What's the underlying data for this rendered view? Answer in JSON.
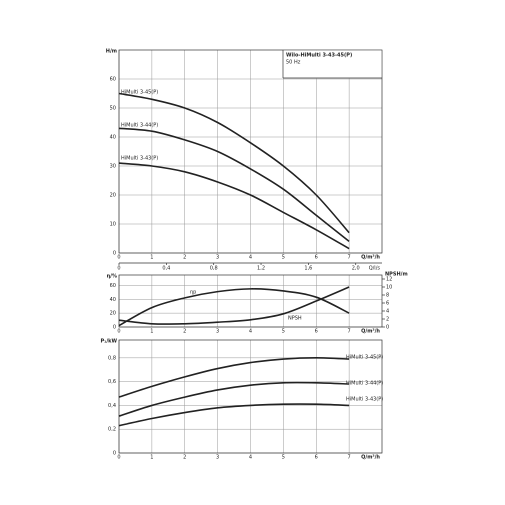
{
  "chart_data": [
    {
      "type": "line",
      "title": "Wilo-HiMulti 3-43-45(P)",
      "subtitle": "50 Hz",
      "y_label": "H/m",
      "x_label": "Q/m³/h",
      "x2_label": "Q/l/s",
      "x": [
        0,
        1,
        2,
        3,
        4,
        5,
        6,
        7
      ],
      "xlim": [
        0,
        8
      ],
      "xticks": [
        0,
        1,
        2,
        3,
        4,
        5,
        6,
        7
      ],
      "x2lim": [
        0,
        2.222
      ],
      "x2ticks": [
        0,
        {
          "value": 0.4,
          "label": "0,4"
        },
        {
          "value": 0.8,
          "label": "0,8"
        },
        {
          "value": 1.2,
          "label": "1,2"
        },
        {
          "value": 1.6,
          "label": "1,6"
        },
        {
          "value": 2.0,
          "label": "2,0"
        }
      ],
      "ylim": [
        0,
        70
      ],
      "yticks": [
        0,
        10,
        20,
        30,
        40,
        50,
        60
      ],
      "grid": true,
      "series": [
        {
          "name": "HiMulti 3-45(P)",
          "color": "#222222",
          "values": [
            55,
            53,
            50,
            45,
            38,
            30,
            20,
            7
          ]
        },
        {
          "name": "HiMulti 3-44(P)",
          "color": "#222222",
          "values": [
            43,
            42,
            39,
            35,
            29,
            22,
            13,
            4
          ]
        },
        {
          "name": "HiMulti 3-43(P)",
          "color": "#222222",
          "values": [
            31,
            30,
            28,
            24.5,
            20,
            14,
            8,
            1.5
          ]
        }
      ]
    },
    {
      "type": "line",
      "y_label": "η/%",
      "y2_label": "NPSH/m",
      "x_label": "Q/m³/h",
      "x": [
        0,
        1,
        2,
        3,
        4,
        5,
        6,
        7
      ],
      "xlim": [
        0,
        8
      ],
      "xticks": [
        0,
        1,
        2,
        3,
        4,
        5,
        6,
        7
      ],
      "ylim": [
        0,
        75
      ],
      "yticks": [
        0,
        20,
        40,
        60
      ],
      "y2lim": [
        0,
        13
      ],
      "y2ticks": [
        0,
        2,
        4,
        6,
        8,
        10,
        12
      ],
      "grid": true,
      "series": [
        {
          "name": "ηp",
          "color": "#222222",
          "values": [
            2,
            28,
            42,
            51,
            55,
            52,
            43,
            20
          ]
        },
        {
          "name": "NPSH",
          "color": "#222222",
          "axis": "y2",
          "values": [
            1.7,
            0.8,
            0.8,
            1.2,
            1.8,
            3.3,
            6.5,
            10
          ]
        }
      ]
    },
    {
      "type": "line",
      "y_label": "P₁/kW",
      "x_label": "Q/m³/h",
      "x": [
        0,
        1,
        2,
        3,
        4,
        5,
        6,
        7
      ],
      "xlim": [
        0,
        8
      ],
      "xticks": [
        0,
        1,
        2,
        3,
        4,
        5,
        6,
        7
      ],
      "ylim": [
        0,
        0.95
      ],
      "yticks": [
        0,
        {
          "value": 0.2,
          "label": "0,2"
        },
        {
          "value": 0.4,
          "label": "0,4"
        },
        {
          "value": 0.6,
          "label": "0,6"
        },
        {
          "value": 0.8,
          "label": "0,8"
        }
      ],
      "grid": true,
      "series": [
        {
          "name": "HiMulti 3-45(P)",
          "color": "#222222",
          "values": [
            0.47,
            0.56,
            0.64,
            0.71,
            0.76,
            0.79,
            0.8,
            0.79
          ]
        },
        {
          "name": "HiMulti 3-44(P)",
          "color": "#222222",
          "values": [
            0.31,
            0.4,
            0.47,
            0.53,
            0.57,
            0.59,
            0.59,
            0.58
          ]
        },
        {
          "name": "HiMulti 3-43(P)",
          "color": "#222222",
          "values": [
            0.23,
            0.29,
            0.34,
            0.38,
            0.4,
            0.41,
            0.41,
            0.4
          ]
        }
      ]
    }
  ]
}
